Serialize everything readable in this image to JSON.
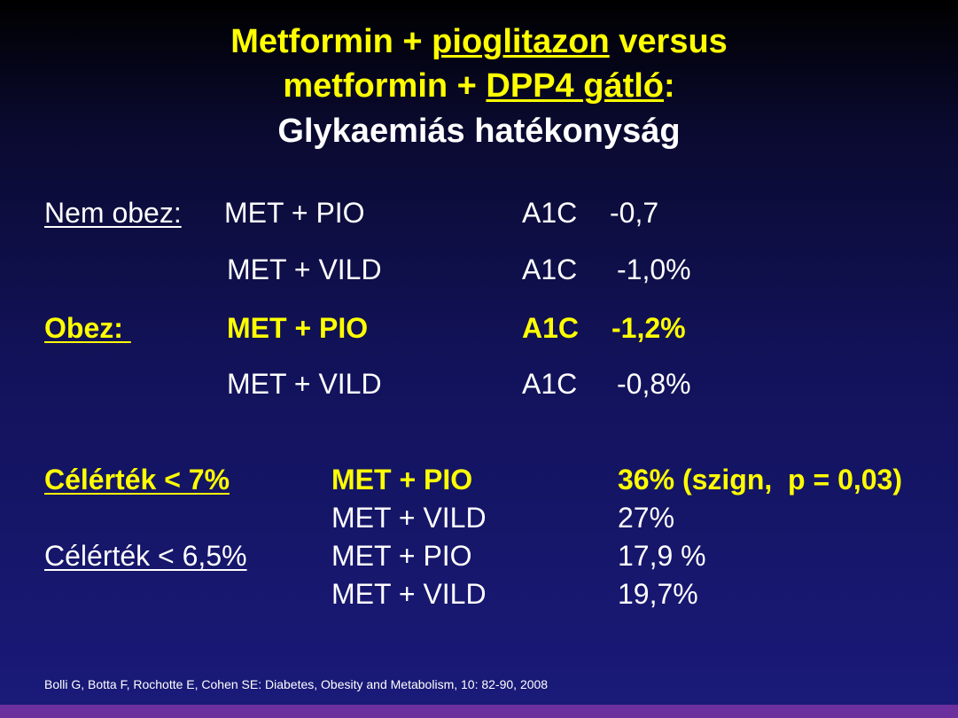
{
  "title": {
    "line1_a": "Metformin + ",
    "line1_u": "pioglitazon",
    "line1_b": " versus",
    "line2_a": "metformin + ",
    "line2_u": "DPP4 gátló",
    "line2_b": ":",
    "line3": "Glykaemiás hatékonyság"
  },
  "comparison": {
    "rows": [
      {
        "group": "Nem obez:",
        "treatment": "MET + PIO",
        "measure": "A1C",
        "value": "-0,7"
      },
      {
        "group": "",
        "treatment": "MET + VILD",
        "measure": "A1C",
        "value": "-1,0%"
      },
      {
        "group": "Obez: ",
        "treatment": "MET + PIO",
        "measure": "A1C",
        "value": "-1,2%"
      },
      {
        "group": "",
        "treatment": "MET + VILD",
        "measure": "A1C",
        "value": "-0,8%"
      }
    ]
  },
  "targets": {
    "rows": [
      {
        "label": "Célérték < 7%",
        "treatment": "MET + PIO",
        "value": "36% (szign,  p = 0,03)"
      },
      {
        "label": "",
        "treatment": "MET + VILD",
        "value": "27%"
      },
      {
        "label": "Célérték < 6,5%",
        "treatment": "MET + PIO",
        "value": "17,9 %"
      },
      {
        "label": "",
        "treatment": "MET + VILD",
        "value": "19,7%"
      }
    ]
  },
  "reference": "Bolli G, Botta F, Rochotte E, Cohen SE: Diabetes, Obesity and Metabolism, 10: 82-90, 2008",
  "colors": {
    "highlight": "#ffff00",
    "text": "#ffffff",
    "bottom_bar": "#6c2f9e"
  }
}
